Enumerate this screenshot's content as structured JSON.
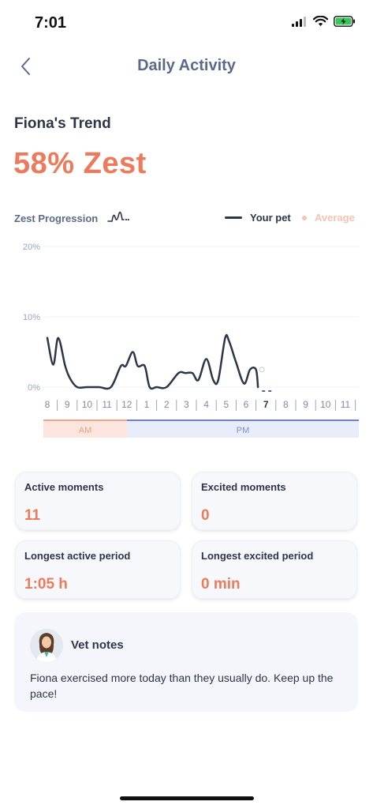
{
  "status": {
    "time": "7:01"
  },
  "header": {
    "title": "Daily Activity"
  },
  "trend": {
    "title": "Fiona's Trend",
    "zest_value": "58% Zest"
  },
  "chart_section": {
    "label": "Zest Progression",
    "legend_pet": "Your pet",
    "legend_avg": "Average"
  },
  "chart_data": {
    "type": "line",
    "title": "",
    "xlabel": "",
    "ylabel": "",
    "ylim": [
      0,
      20
    ],
    "yticks": [
      "0%",
      "10%",
      "20%"
    ],
    "x_ticks": [
      "8",
      "9",
      "10",
      "11",
      "12",
      "1",
      "2",
      "3",
      "4",
      "5",
      "6",
      "7",
      "8",
      "9",
      "10",
      "11"
    ],
    "current_tick": "7",
    "periods": [
      "AM",
      "PM"
    ],
    "grid": true,
    "legend": "top-right",
    "series": [
      {
        "name": "Your pet",
        "color": "#2d3548",
        "x": [
          0,
          0.3,
          0.55,
          0.9,
          1.15,
          1.5,
          2,
          2.6,
          3.2,
          3.7,
          3.95,
          4.3,
          4.55,
          4.9,
          5.15,
          5.5,
          6,
          6.6,
          6.95,
          7.3,
          7.6,
          8,
          8.35,
          8.6,
          8.95,
          9.15,
          9.5,
          9.9,
          10.2,
          10.5,
          10.6
        ],
        "values": [
          7,
          3.2,
          7,
          3,
          1.2,
          0,
          0,
          0,
          0,
          3,
          3,
          5,
          3,
          3,
          0,
          0,
          0,
          2,
          2,
          2,
          1,
          4,
          1,
          1,
          7,
          6.5,
          3.5,
          0.5,
          2.5,
          2.5,
          0
        ]
      }
    ],
    "average_marker": {
      "x": 10.8,
      "value": 2.5
    }
  },
  "stats": [
    {
      "label": "Active moments",
      "value": "11"
    },
    {
      "label": "Excited moments",
      "value": "0"
    },
    {
      "label": "Longest active period",
      "value": "1:05 h"
    },
    {
      "label": "Longest excited period",
      "value": "0 min"
    }
  ],
  "vet": {
    "title": "Vet notes",
    "text": "Fiona exercised more today than they usually do. Keep up the pace!"
  },
  "colors": {
    "accent": "#ee7a5b",
    "primary": "#2d3548",
    "am": "#fce5de",
    "pm": "#e8ecfb"
  }
}
